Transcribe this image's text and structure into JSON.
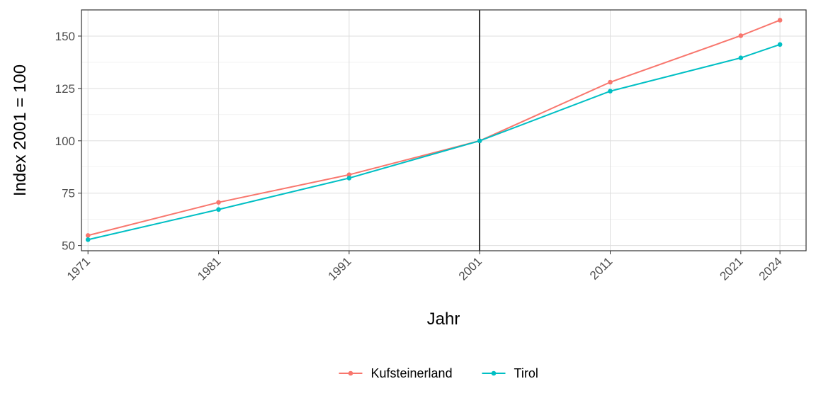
{
  "chart_data": {
    "type": "line",
    "title": "",
    "xlabel": "Jahr",
    "ylabel": "Index 2001 = 100",
    "x": [
      1971,
      1981,
      1991,
      2001,
      2011,
      2021,
      2024
    ],
    "x_tick_labels": [
      "1971",
      "1981",
      "1991",
      "2001",
      "2011",
      "2021",
      "2024"
    ],
    "y_ticks": [
      50,
      75,
      100,
      125,
      150
    ],
    "y_tick_labels": [
      "50",
      "75",
      "100",
      "125",
      "150"
    ],
    "xlim": [
      1970.5,
      2026
    ],
    "ylim": [
      47.5,
      162.5
    ],
    "reference_line_x": 2001,
    "grid": true,
    "legend_position": "bottom",
    "series": [
      {
        "name": "Kufsteinerland",
        "color": "#F8766D",
        "values": [
          54.8,
          70.6,
          83.8,
          100,
          128.0,
          150.2,
          157.6
        ]
      },
      {
        "name": "Tirol",
        "color": "#00BFC4",
        "values": [
          52.8,
          67.2,
          82.2,
          100,
          123.7,
          139.6,
          146.0
        ]
      }
    ]
  }
}
